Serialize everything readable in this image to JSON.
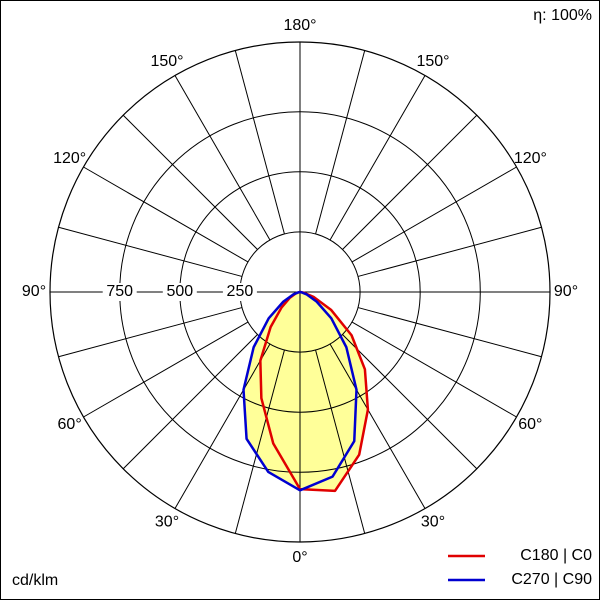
{
  "chart_data": {
    "type": "polar",
    "efficiency": "η: 100%",
    "unit_label": "cd/klm",
    "rlim": [
      0,
      1040
    ],
    "rticks": [
      250,
      500,
      750
    ],
    "angle_ticks": [
      {
        "value": 0,
        "label": "0°"
      },
      {
        "value": 30,
        "label": "30°"
      },
      {
        "value": 60,
        "label": "60°"
      },
      {
        "value": 90,
        "label": "90°"
      },
      {
        "value": 120,
        "label": "120°"
      },
      {
        "value": 150,
        "label": "150°"
      },
      {
        "value": 180,
        "label": "180°"
      }
    ],
    "x": [
      -90,
      -80,
      -70,
      -60,
      -50,
      -40,
      -30,
      -20,
      -10,
      0,
      10,
      20,
      30,
      40,
      50,
      60,
      70,
      80,
      90
    ],
    "fill_color": "#ffff99",
    "series": [
      {
        "name": "C180 | C0",
        "color": "#e00000",
        "values": [
          0,
          5,
          20,
          50,
          100,
          190,
          330,
          470,
          640,
          820,
          840,
          720,
          565,
          420,
          280,
          150,
          60,
          15,
          0
        ]
      },
      {
        "name": "C270 | C90",
        "color": "#0000d0",
        "values": [
          0,
          5,
          30,
          80,
          170,
          300,
          470,
          650,
          760,
          825,
          780,
          660,
          470,
          300,
          170,
          80,
          30,
          5,
          0
        ]
      }
    ]
  }
}
